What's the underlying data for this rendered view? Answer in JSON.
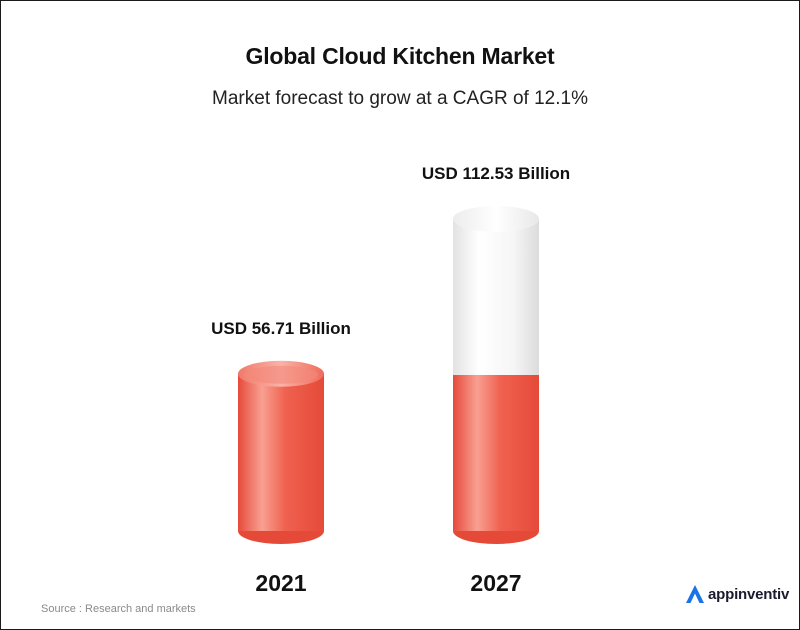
{
  "title": "Global Cloud Kitchen Market",
  "subtitle": "Market forecast to grow at a CAGR of 12.1%",
  "source": "Source : Research and markets",
  "brand": {
    "name": "appinventiv",
    "logo_icon": "appinventiv-logo-icon",
    "logo_color": "#1a73e8"
  },
  "colors": {
    "bar": "#f0614f",
    "bar_highlight": "#f8a092",
    "empty": "#f2f2f2"
  },
  "chart_data": {
    "type": "bar",
    "categories": [
      "2021",
      "2027"
    ],
    "values": [
      56.71,
      112.53
    ],
    "data_labels": [
      "USD 56.71 Billion",
      "USD 112.53 Billion"
    ],
    "filled_portion": [
      1.0,
      0.5
    ],
    "title": "Global Cloud Kitchen Market",
    "subtitle": "Market forecast to grow at a CAGR of 12.1%",
    "xlabel": "",
    "ylabel": "",
    "grid": false,
    "legend": false
  }
}
